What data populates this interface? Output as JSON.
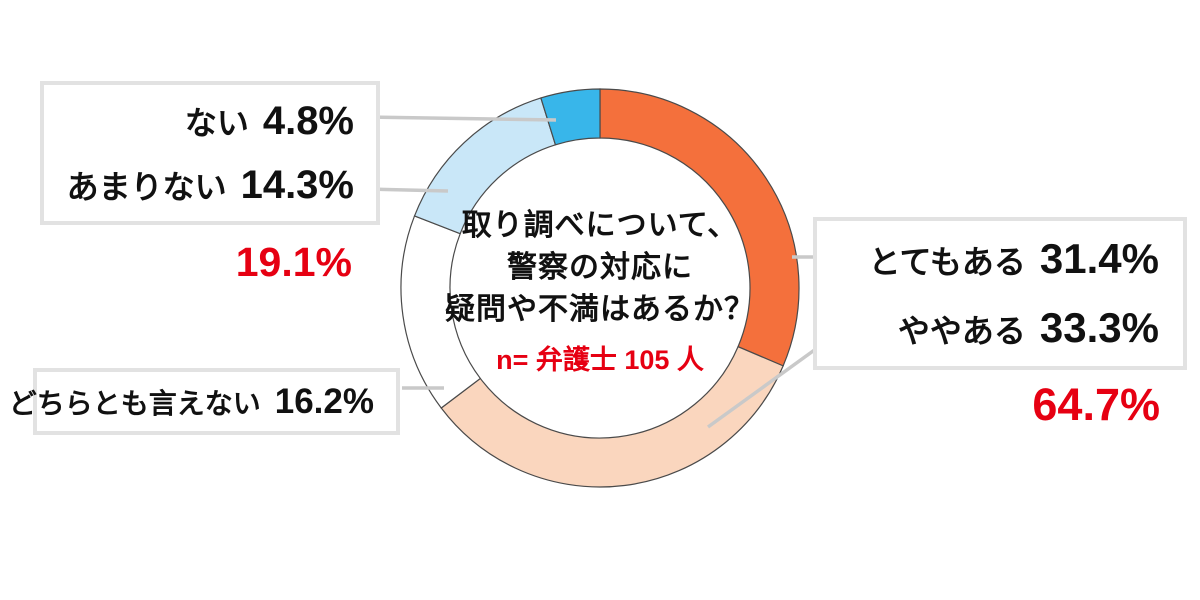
{
  "chart_data": {
    "type": "pie",
    "variant": "donut",
    "title": "取り調べについて、警察の対応に疑問や不満はあるか？",
    "center_title_lines": [
      "取り調べについて、",
      "警察の対応に",
      "疑問や不満はあるか？"
    ],
    "sample_note": "n= 弁護士 105 人",
    "start_angle_deg": 0,
    "direction": "clockwise-from-top",
    "legend_position": "callout-boxes",
    "segments": [
      {
        "label": "とてもある",
        "value": 31.4,
        "display": "31.4%",
        "color": "#F4703C"
      },
      {
        "label": "ややある",
        "value": 33.3,
        "display": "33.3%",
        "color": "#FAD6BE"
      },
      {
        "label": "どちらとも言えない",
        "value": 16.2,
        "display": "16.2%",
        "color": "#FFFFFF"
      },
      {
        "label": "あまりない",
        "value": 14.3,
        "display": "14.3%",
        "color": "#C9E7F8"
      },
      {
        "label": "ない",
        "value": 4.8,
        "display": "4.8%",
        "color": "#38B6EA"
      }
    ],
    "combined_totals": {
      "have_concerns": "64.7%",
      "no_concerns": "19.1%"
    },
    "colors": {
      "accent_red": "#E60012",
      "segment_outline": "#4A4A4A",
      "leader_line": "#C9C9C9",
      "box_border": "#E2E2E2",
      "text": "#111111"
    }
  },
  "callouts": {
    "negative_box": {
      "rows": [
        {
          "label": "ない",
          "value": "4.8%"
        },
        {
          "label": "あまりない",
          "value": "14.3%"
        }
      ],
      "total": "19.1%"
    },
    "positive_box": {
      "rows": [
        {
          "label": "とてもある",
          "value": "31.4%"
        },
        {
          "label": "ややある",
          "value": "33.3%"
        }
      ],
      "total": "64.7%"
    },
    "neutral_box": {
      "label": "どちらとも言えない",
      "value": "16.2%"
    }
  },
  "center": {
    "line1": "取り調べについて、",
    "line2": "警察の対応に",
    "line3": "疑問や不満はあるか？",
    "note": "n= 弁護士 105 人"
  }
}
